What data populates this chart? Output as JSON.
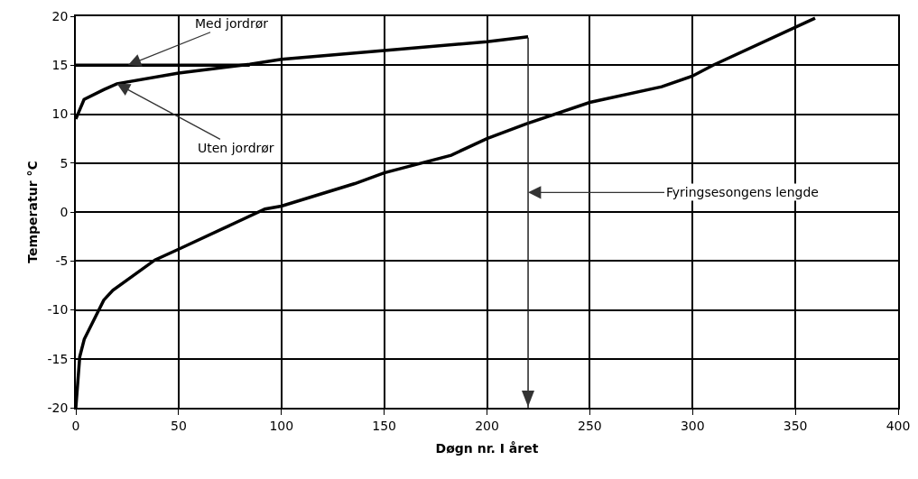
{
  "chart_data": {
    "type": "line",
    "xlabel": "Døgn nr. I året",
    "ylabel": "Temperatur °C",
    "xlim": [
      0,
      400
    ],
    "xticks": [
      0,
      50,
      100,
      150,
      200,
      250,
      300,
      350,
      400
    ],
    "ylim": [
      -20,
      20
    ],
    "yticks": [
      -20,
      -15,
      -10,
      -5,
      0,
      5,
      10,
      15,
      20
    ],
    "grid": true,
    "legend": false,
    "marker": "none",
    "line_style": "solid",
    "series": [
      {
        "name": "Med jordrør",
        "color": "#000000",
        "x": [
          0,
          84.6
        ],
        "values": [
          15,
          15
        ]
      },
      {
        "name": "Uten jordrør",
        "color": "#000000",
        "x": [
          0,
          4,
          13.6,
          20,
          50,
          84.6,
          100,
          150,
          200,
          220
        ],
        "values": [
          9.5,
          11.5,
          12.5,
          13.1,
          14.2,
          15.1,
          15.6,
          16.5,
          17.4,
          17.9
        ]
      },
      {
        "color": "#000000",
        "x": [
          0,
          1.9,
          4.1,
          13.6,
          18,
          38.5,
          50,
          92,
          100,
          135.7,
          150,
          182.6,
          200,
          219,
          250,
          285,
          300,
          310,
          359.6
        ],
        "values": [
          -20,
          -14.8,
          -13,
          -9,
          -8,
          -4.9,
          -3.8,
          0.3,
          0.6,
          2.9,
          4,
          5.8,
          7.5,
          9,
          11.2,
          12.8,
          13.9,
          15,
          19.8
        ]
      }
    ],
    "ref_lines": [
      {
        "axis": "x",
        "value": 220,
        "label": "Fyringsesongens lengde"
      }
    ]
  }
}
